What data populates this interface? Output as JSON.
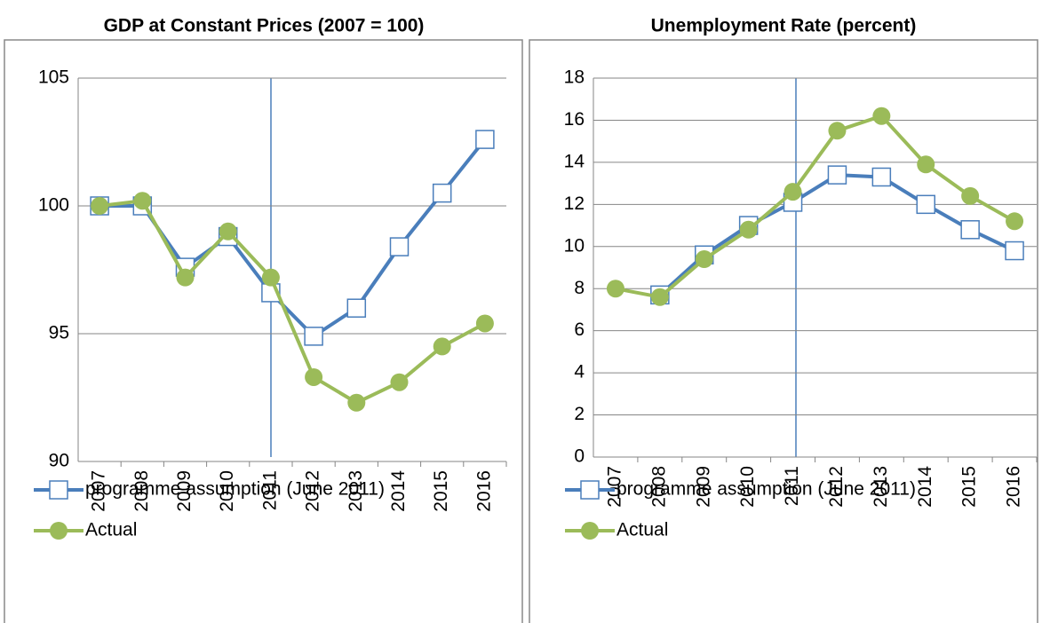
{
  "chart_data": [
    {
      "type": "line",
      "title": "GDP at Constant Prices (2007 = 100)",
      "categories": [
        "2007",
        "2008",
        "2009",
        "2010",
        "2011",
        "2012",
        "2013",
        "2014",
        "2015",
        "2016"
      ],
      "series": [
        {
          "name": "programme assumption (June 2011)",
          "color": "#4a7ebb",
          "marker": "square",
          "values": [
            100,
            100,
            97.6,
            98.8,
            96.6,
            94.9,
            96.0,
            98.4,
            100.5,
            102.6
          ]
        },
        {
          "name": "Actual",
          "color": "#9bbb59",
          "marker": "circle",
          "values": [
            100,
            100.2,
            97.2,
            99.0,
            97.2,
            93.3,
            92.3,
            93.1,
            94.5,
            95.4
          ]
        }
      ],
      "ylim": [
        90,
        105
      ],
      "yticks": [
        90,
        95,
        100,
        105
      ],
      "grid": true,
      "legend": "bottom"
    },
    {
      "type": "line",
      "title": "Unemployment Rate (percent)",
      "categories": [
        "2007",
        "2008",
        "2009",
        "2010",
        "2011",
        "2012",
        "2013",
        "2014",
        "2015",
        "2016"
      ],
      "series": [
        {
          "name": "programme assumption (June 2011)",
          "color": "#4a7ebb",
          "marker": "square",
          "values": [
            null,
            7.7,
            9.6,
            11.0,
            12.1,
            13.4,
            13.3,
            12.0,
            10.8,
            9.8
          ]
        },
        {
          "name": "Actual",
          "color": "#9bbb59",
          "marker": "circle",
          "values": [
            8.0,
            7.6,
            9.4,
            10.8,
            12.6,
            15.5,
            16.2,
            13.9,
            12.4,
            11.2
          ]
        }
      ],
      "ylim": [
        0,
        18
      ],
      "yticks": [
        0,
        2,
        4,
        6,
        8,
        10,
        12,
        14,
        16,
        18
      ],
      "grid": true,
      "legend": "bottom"
    }
  ]
}
